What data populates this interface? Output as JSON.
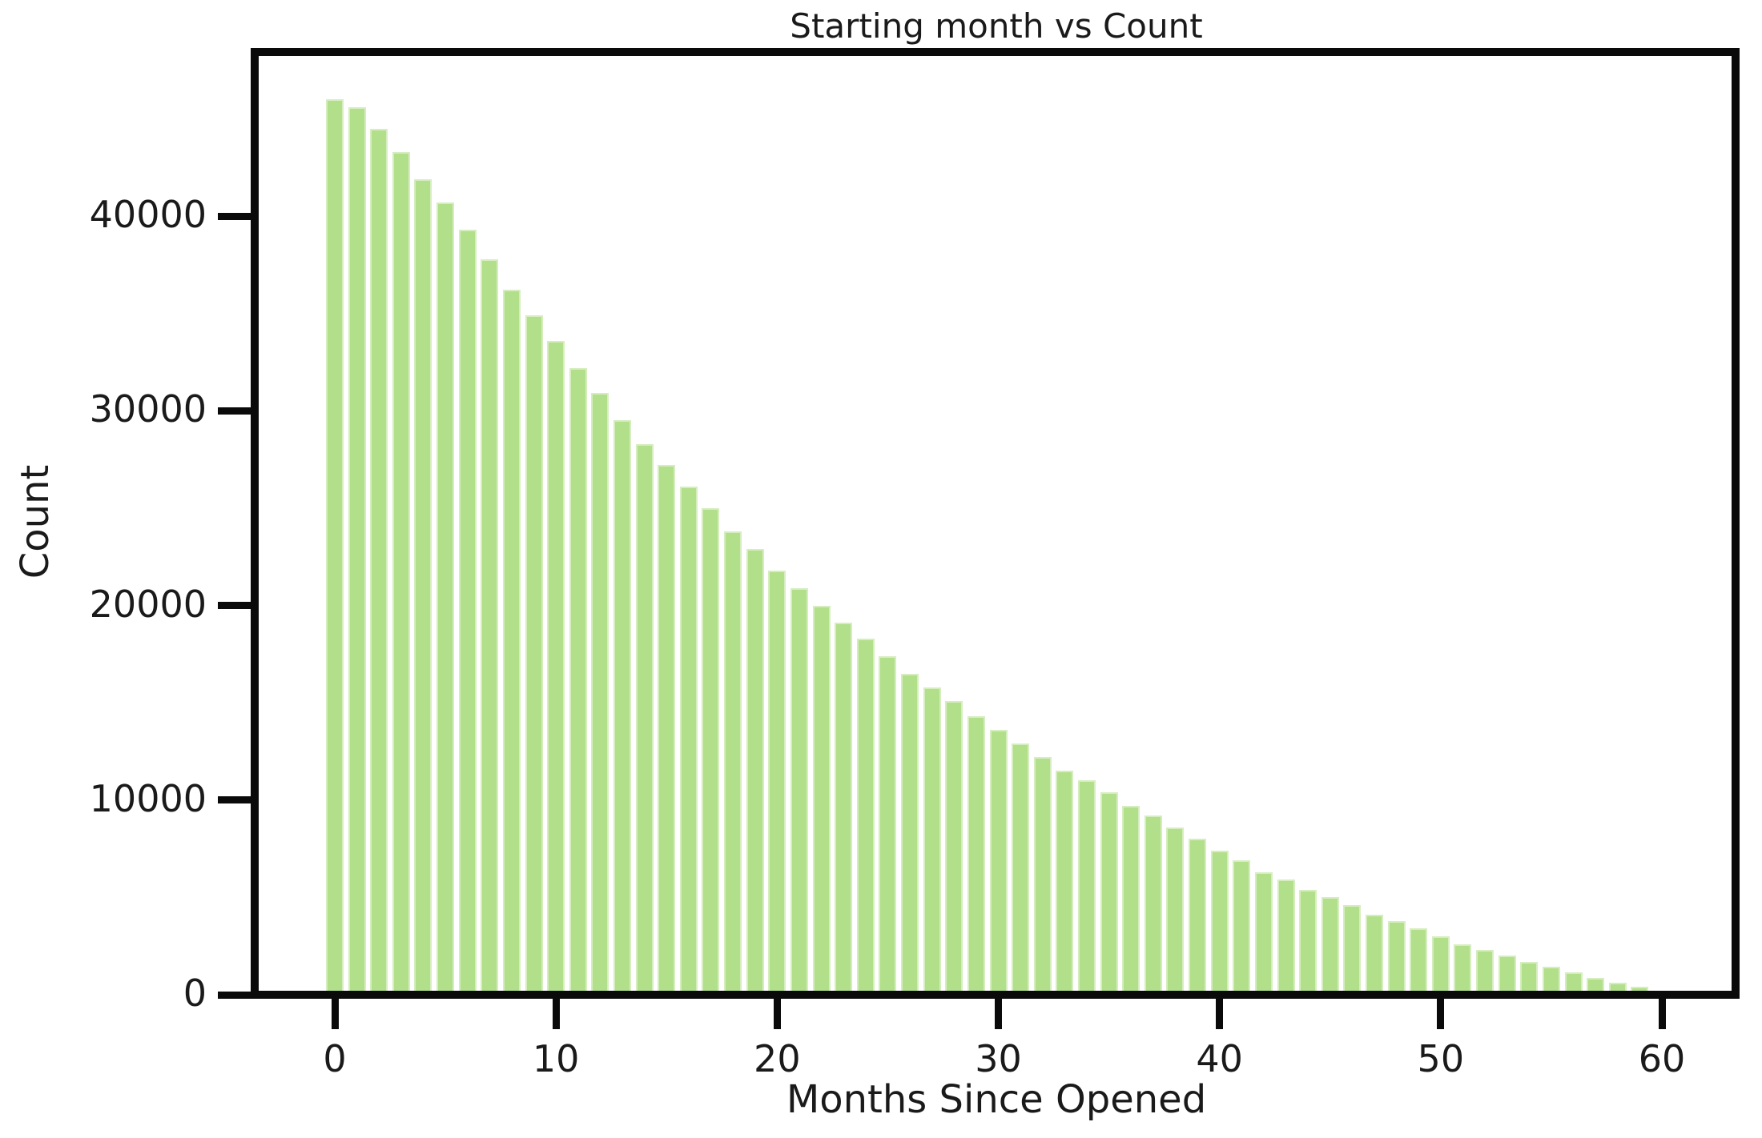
{
  "figure": {
    "background": "#ffffff",
    "text_color": "#1a1a1a",
    "frame_color": "#0a0a0a"
  },
  "chart_data": {
    "type": "bar",
    "title": "Starting month vs Count",
    "xlabel": "Months Since Opened",
    "ylabel": "Count",
    "bar_color": "#b2df8a",
    "bar_edge_color": "#d6edbf",
    "grid": false,
    "legend": null,
    "xlim": [
      -3.4,
      63.2
    ],
    "ylim": [
      0,
      48200
    ],
    "xticks": [
      0,
      10,
      20,
      30,
      40,
      50,
      60
    ],
    "xtick_labels": [
      "0",
      "10",
      "20",
      "30",
      "40",
      "50",
      "60"
    ],
    "yticks": [
      0,
      10000,
      20000,
      30000,
      40000
    ],
    "ytick_labels": [
      "0",
      "10000",
      "20000",
      "30000",
      "40000"
    ],
    "x": [
      0,
      1,
      2,
      3,
      4,
      5,
      6,
      7,
      8,
      9,
      10,
      11,
      12,
      13,
      14,
      15,
      16,
      17,
      18,
      19,
      20,
      21,
      22,
      23,
      24,
      25,
      26,
      27,
      28,
      29,
      30,
      31,
      32,
      33,
      34,
      35,
      36,
      37,
      38,
      39,
      40,
      41,
      42,
      43,
      44,
      45,
      46,
      47,
      48,
      49,
      50,
      51,
      52,
      53,
      54,
      55,
      56,
      57,
      58,
      59
    ],
    "values": [
      46000,
      45600,
      44500,
      43300,
      41900,
      40700,
      39300,
      37800,
      36200,
      34900,
      33600,
      32200,
      30900,
      29500,
      28300,
      27200,
      26100,
      25000,
      23800,
      22900,
      21800,
      20900,
      20000,
      19100,
      18300,
      17400,
      16500,
      15800,
      15100,
      14300,
      13600,
      12900,
      12200,
      11500,
      11000,
      10400,
      9700,
      9200,
      8600,
      8000,
      7400,
      6900,
      6300,
      5900,
      5400,
      5000,
      4600,
      4100,
      3800,
      3400,
      3000,
      2600,
      2300,
      2000,
      1700,
      1450,
      1150,
      850,
      620,
      430
    ]
  }
}
